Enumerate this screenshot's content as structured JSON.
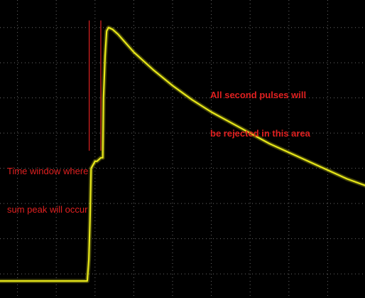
{
  "chart_data": {
    "type": "line",
    "title": "",
    "xlabel": "",
    "ylabel": "",
    "grid": true,
    "xlim": [
      0,
      10
    ],
    "ylim": [
      -3.3,
      4.6
    ],
    "series": [
      {
        "color": "#e8e81a",
        "x": [
          0,
          1,
          2,
          2.8,
          2.84,
          2.87,
          2.9,
          2.95,
          3.0,
          3.05,
          3.1,
          3.15,
          3.2,
          3.22,
          3.26,
          3.3,
          3.35,
          3.45,
          3.6,
          3.8,
          4.0,
          4.5,
          5.0,
          5.5,
          6.0,
          6.5,
          7.0,
          7.5,
          8.0,
          8.5,
          9.0,
          9.5,
          10.0
        ],
        "y": [
          -3.2,
          -3.2,
          -3.2,
          -3.2,
          -2.6,
          -1.5,
          0.0,
          0.1,
          0.2,
          0.2,
          0.25,
          0.3,
          0.3,
          2.0,
          3.2,
          3.9,
          4.0,
          3.95,
          3.8,
          3.55,
          3.3,
          2.8,
          2.35,
          1.95,
          1.6,
          1.3,
          1.0,
          0.7,
          0.45,
          0.2,
          -0.05,
          -0.3,
          -0.5
        ]
      }
    ],
    "markers": [
      {
        "x": 2.85,
        "y_from": 0.5,
        "y_to": 4.2,
        "color": "#e02020"
      },
      {
        "x": 3.15,
        "y_from": 0.5,
        "y_to": 4.2,
        "color": "#e02020"
      }
    ],
    "annotations": [
      {
        "text_line1": "All second pulses will",
        "text_line2": "be rejected in this area",
        "color": "#e02020"
      },
      {
        "text_line1": "Time window where",
        "text_line2": "sum peak will occur",
        "color": "#e02020"
      }
    ]
  }
}
